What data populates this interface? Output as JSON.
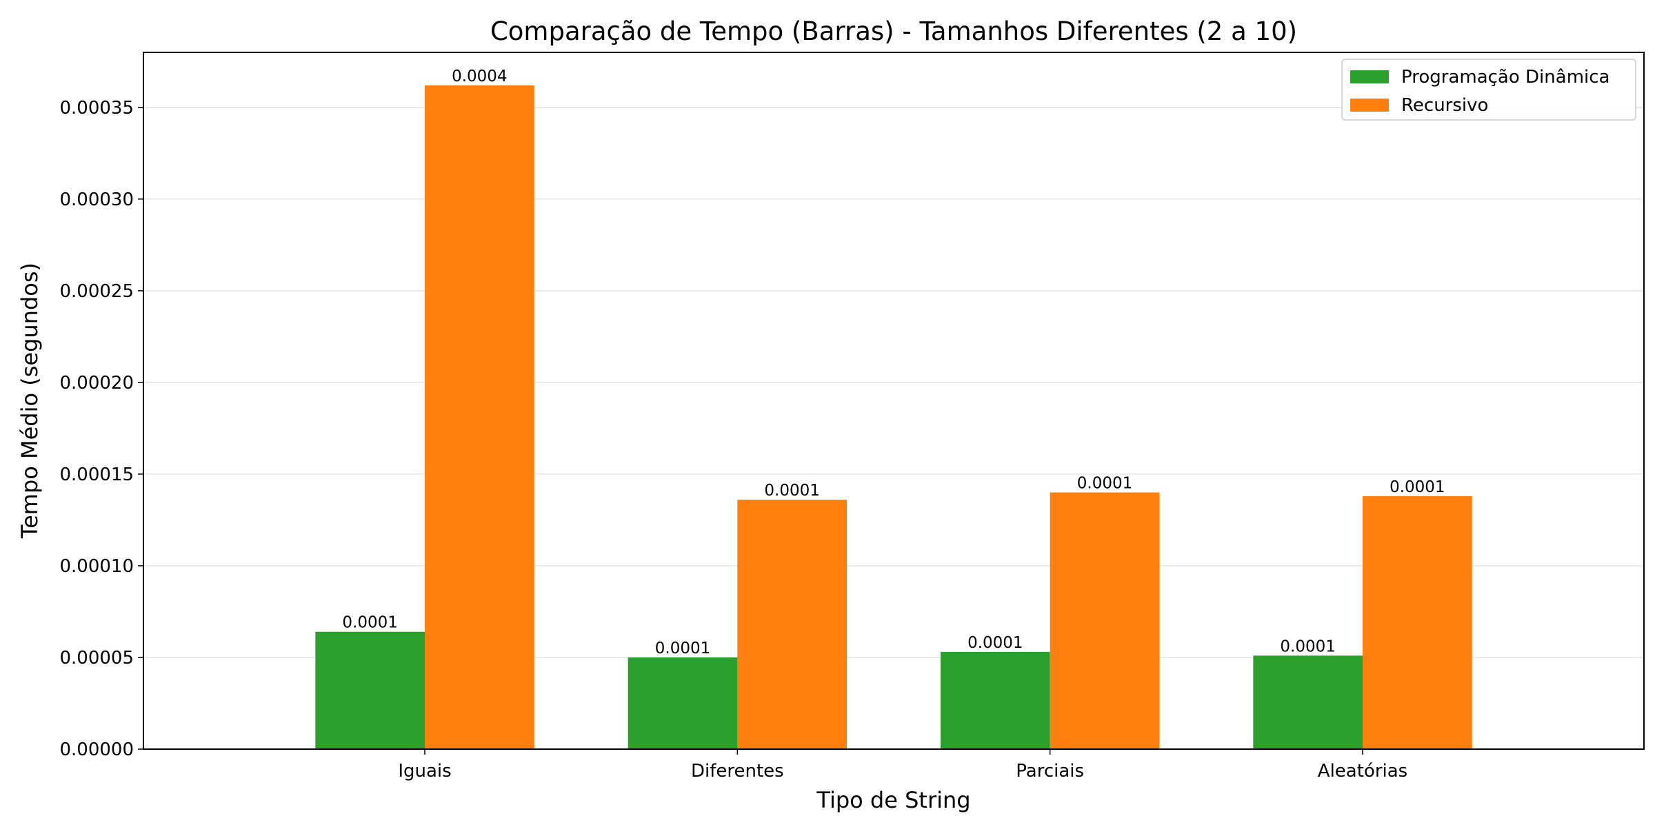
{
  "chart_data": {
    "type": "bar",
    "title": "Comparação de Tempo (Barras) - Tamanhos Diferentes (2 a 10)",
    "xlabel": "Tipo de String",
    "ylabel": "Tempo Médio (segundos)",
    "categories": [
      "Iguais",
      "Diferentes",
      "Parciais",
      "Aleatórias"
    ],
    "series": [
      {
        "name": "Programação Dinâmica",
        "color": "#2ca02c",
        "values": [
          6.4e-05,
          5e-05,
          5.3e-05,
          5.1e-05
        ],
        "data_labels": [
          "0.0001",
          "0.0001",
          "0.0001",
          "0.0001"
        ]
      },
      {
        "name": "Recursivo",
        "color": "#ff7f0e",
        "values": [
          0.000362,
          0.000136,
          0.00014,
          0.000138
        ],
        "data_labels": [
          "0.0004",
          "0.0001",
          "0.0001",
          "0.0001"
        ]
      }
    ],
    "ylim": [
      0,
      0.00038
    ],
    "yticks": [
      "0.00000",
      "0.00005",
      "0.00010",
      "0.00015",
      "0.00020",
      "0.00025",
      "0.00030",
      "0.00035"
    ],
    "ytick_values": [
      0,
      5e-05,
      0.0001,
      0.00015,
      0.0002,
      0.00025,
      0.0003,
      0.00035
    ],
    "grid": "y",
    "legend_position": "top-right"
  }
}
